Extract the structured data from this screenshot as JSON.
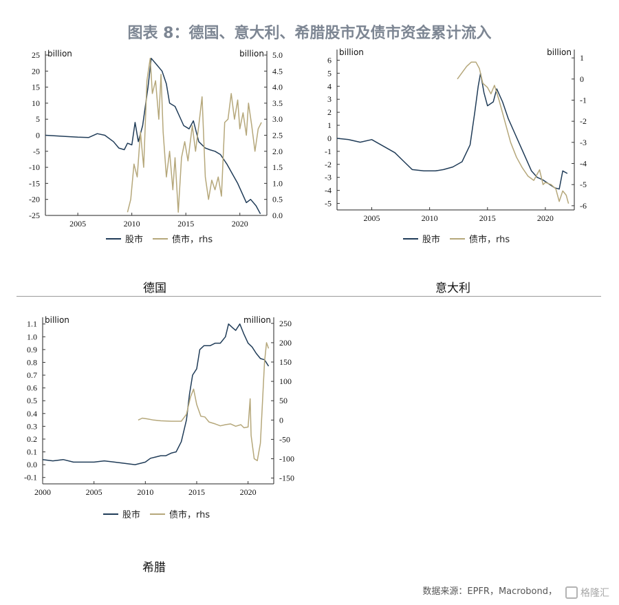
{
  "title": "图表 8：德国、意大利、希腊股市及债市资金累计流入",
  "source": "数据来源：EPFR，Macrobond，",
  "watermark": "格隆汇",
  "colors": {
    "equity": "#1f3b57",
    "bond": "#b5a77a"
  },
  "chart_data": [
    {
      "name": "德国",
      "type": "line",
      "left_unit": "billion",
      "right_unit": "billion",
      "left_ylim": [
        -25,
        25
      ],
      "left_ticks": [
        25,
        20,
        15,
        10,
        5,
        0,
        -5,
        -10,
        -15,
        -20,
        -25
      ],
      "right_ylim": [
        0,
        5
      ],
      "right_ticks": [
        "5.0",
        "4.5",
        "4.0",
        "3.5",
        "3.0",
        "2.5",
        "2.0",
        "1.5",
        "1.0",
        "0.5",
        "0.0"
      ],
      "xlim": [
        2002,
        2022.5
      ],
      "x_ticks": [
        2005,
        2010,
        2015,
        2020
      ],
      "legend": [
        "股市",
        "债市，rhs"
      ],
      "series": [
        {
          "name": "股市",
          "axis": "left",
          "points": [
            [
              2002.0,
              0
            ],
            [
              2004.0,
              -0.4
            ],
            [
              2005.0,
              -0.6
            ],
            [
              2006.0,
              -0.7
            ],
            [
              2006.8,
              0.5
            ],
            [
              2007.5,
              0
            ],
            [
              2008.3,
              -2
            ],
            [
              2008.8,
              -4
            ],
            [
              2009.3,
              -4.5
            ],
            [
              2009.6,
              -2.5
            ],
            [
              2010.0,
              -3
            ],
            [
              2010.3,
              4
            ],
            [
              2010.6,
              -2
            ],
            [
              2011.0,
              3
            ],
            [
              2011.5,
              15
            ],
            [
              2011.8,
              24
            ],
            [
              2012.3,
              22
            ],
            [
              2012.8,
              20
            ],
            [
              2013.2,
              16
            ],
            [
              2013.5,
              10
            ],
            [
              2014.0,
              9
            ],
            [
              2014.4,
              6
            ],
            [
              2014.8,
              3
            ],
            [
              2015.3,
              2
            ],
            [
              2015.7,
              4.5
            ],
            [
              2016.2,
              -2
            ],
            [
              2016.8,
              -4
            ],
            [
              2017.2,
              -4.5
            ],
            [
              2017.7,
              -5
            ],
            [
              2018.2,
              -6
            ],
            [
              2018.8,
              -9
            ],
            [
              2019.3,
              -12
            ],
            [
              2019.8,
              -15
            ],
            [
              2020.2,
              -18
            ],
            [
              2020.6,
              -21
            ],
            [
              2021.0,
              -20
            ],
            [
              2021.5,
              -22
            ],
            [
              2021.9,
              -24.5
            ]
          ]
        },
        {
          "name": "债市，rhs",
          "axis": "right",
          "points": [
            [
              2009.6,
              0.1
            ],
            [
              2009.9,
              0.5
            ],
            [
              2010.2,
              1.6
            ],
            [
              2010.5,
              1.2
            ],
            [
              2010.8,
              2.6
            ],
            [
              2011.1,
              1.5
            ],
            [
              2011.4,
              4.2
            ],
            [
              2011.7,
              4.9
            ],
            [
              2011.9,
              3.8
            ],
            [
              2012.2,
              4.2
            ],
            [
              2012.5,
              3.0
            ],
            [
              2012.7,
              4.4
            ],
            [
              2012.9,
              2.6
            ],
            [
              2013.2,
              1.2
            ],
            [
              2013.5,
              2.0
            ],
            [
              2013.8,
              0.8
            ],
            [
              2014.0,
              1.8
            ],
            [
              2014.3,
              0.1
            ],
            [
              2014.6,
              1.8
            ],
            [
              2014.9,
              2.3
            ],
            [
              2015.2,
              1.7
            ],
            [
              2015.6,
              2.8
            ],
            [
              2015.9,
              2.0
            ],
            [
              2016.2,
              2.8
            ],
            [
              2016.5,
              3.7
            ],
            [
              2016.8,
              1.2
            ],
            [
              2017.1,
              0.5
            ],
            [
              2017.4,
              1.1
            ],
            [
              2017.7,
              0.8
            ],
            [
              2018.0,
              1.2
            ],
            [
              2018.3,
              0.6
            ],
            [
              2018.6,
              2.9
            ],
            [
              2018.9,
              3.0
            ],
            [
              2019.2,
              3.8
            ],
            [
              2019.5,
              3.0
            ],
            [
              2019.8,
              3.6
            ],
            [
              2020.0,
              2.7
            ],
            [
              2020.3,
              3.2
            ],
            [
              2020.6,
              2.5
            ],
            [
              2020.8,
              3.5
            ],
            [
              2021.1,
              2.8
            ],
            [
              2021.4,
              2.0
            ],
            [
              2021.7,
              2.7
            ],
            [
              2022.0,
              2.9
            ]
          ]
        }
      ]
    },
    {
      "name": "意大利",
      "type": "line",
      "left_unit": "billion",
      "right_unit": "billion",
      "left_ylim": [
        -5.5,
        6.5
      ],
      "left_ticks": [
        6,
        5,
        4,
        3,
        2,
        1,
        0,
        -1,
        -2,
        -3,
        -4,
        -5
      ],
      "right_ylim": [
        -6.2,
        1.2
      ],
      "right_ticks": [
        1,
        0,
        -1,
        -2,
        -3,
        -4,
        -5,
        -6
      ],
      "xlim": [
        2002,
        2022.5
      ],
      "x_ticks": [
        2005,
        2010,
        2015,
        2020
      ],
      "legend": [
        "股市",
        "债市，rhs"
      ],
      "series": [
        {
          "name": "股市",
          "axis": "left",
          "points": [
            [
              2002.0,
              0
            ],
            [
              2003.0,
              -0.1
            ],
            [
              2004.0,
              -0.3
            ],
            [
              2005.0,
              -0.1
            ],
            [
              2006.0,
              -0.6
            ],
            [
              2007.0,
              -1.1
            ],
            [
              2007.8,
              -1.8
            ],
            [
              2008.5,
              -2.4
            ],
            [
              2009.5,
              -2.5
            ],
            [
              2010.5,
              -2.5
            ],
            [
              2011.2,
              -2.4
            ],
            [
              2012.0,
              -2.2
            ],
            [
              2012.8,
              -1.8
            ],
            [
              2013.5,
              -0.5
            ],
            [
              2013.9,
              2
            ],
            [
              2014.2,
              4
            ],
            [
              2014.4,
              5
            ],
            [
              2014.7,
              3.5
            ],
            [
              2015.0,
              2.5
            ],
            [
              2015.5,
              2.8
            ],
            [
              2015.8,
              3.8
            ],
            [
              2016.3,
              2.8
            ],
            [
              2016.8,
              1.5
            ],
            [
              2017.3,
              0.5
            ],
            [
              2017.8,
              -0.5
            ],
            [
              2018.3,
              -1.5
            ],
            [
              2018.8,
              -2.5
            ],
            [
              2019.3,
              -3.0
            ],
            [
              2019.8,
              -3.2
            ],
            [
              2020.3,
              -3.5
            ],
            [
              2020.8,
              -3.8
            ],
            [
              2021.2,
              -3.9
            ],
            [
              2021.5,
              -2.5
            ],
            [
              2021.9,
              -2.7
            ]
          ]
        },
        {
          "name": "债市，rhs",
          "axis": "right",
          "points": [
            [
              2012.4,
              0
            ],
            [
              2012.8,
              0.3
            ],
            [
              2013.2,
              0.6
            ],
            [
              2013.6,
              0.8
            ],
            [
              2014.0,
              0.8
            ],
            [
              2014.3,
              0.5
            ],
            [
              2014.6,
              -0.2
            ],
            [
              2015.0,
              -0.4
            ],
            [
              2015.3,
              -0.7
            ],
            [
              2015.6,
              -0.3
            ],
            [
              2016.0,
              -1.0
            ],
            [
              2016.5,
              -2.0
            ],
            [
              2017.0,
              -3.0
            ],
            [
              2017.5,
              -3.7
            ],
            [
              2018.0,
              -4.2
            ],
            [
              2018.5,
              -4.6
            ],
            [
              2019.0,
              -4.8
            ],
            [
              2019.5,
              -4.3
            ],
            [
              2019.8,
              -5.0
            ],
            [
              2020.0,
              -4.9
            ],
            [
              2020.5,
              -5.0
            ],
            [
              2020.9,
              -5.2
            ],
            [
              2021.2,
              -5.8
            ],
            [
              2021.5,
              -5.3
            ],
            [
              2021.8,
              -5.5
            ],
            [
              2022.0,
              -5.9
            ]
          ]
        }
      ]
    },
    {
      "name": "希腊",
      "type": "line",
      "left_unit": "billion",
      "right_unit": "million",
      "left_ylim": [
        -0.15,
        1.12
      ],
      "left_ticks": [
        "1.1",
        "1.0",
        "0.9",
        "0.8",
        "0.7",
        "0.6",
        "0.5",
        "0.4",
        "0.3",
        "0.2",
        "0.1",
        "0.0",
        "-0.1"
      ],
      "right_ylim": [
        -165,
        255
      ],
      "right_ticks": [
        250,
        200,
        150,
        100,
        50,
        0,
        -50,
        -100,
        -150
      ],
      "xlim": [
        2000,
        2022.5
      ],
      "x_ticks": [
        2000,
        2005,
        2010,
        2015,
        2020
      ],
      "legend": [
        "股市",
        "债市，rhs"
      ],
      "series": [
        {
          "name": "股市",
          "axis": "left",
          "points": [
            [
              2000.0,
              0.04
            ],
            [
              2001.0,
              0.03
            ],
            [
              2002.0,
              0.04
            ],
            [
              2003.0,
              0.02
            ],
            [
              2004.0,
              0.02
            ],
            [
              2005.0,
              0.02
            ],
            [
              2006.0,
              0.03
            ],
            [
              2007.0,
              0.02
            ],
            [
              2008.0,
              0.01
            ],
            [
              2009.0,
              0.0
            ],
            [
              2010.0,
              0.02
            ],
            [
              2010.5,
              0.05
            ],
            [
              2011.0,
              0.06
            ],
            [
              2011.5,
              0.07
            ],
            [
              2012.0,
              0.07
            ],
            [
              2012.5,
              0.09
            ],
            [
              2013.0,
              0.1
            ],
            [
              2013.5,
              0.18
            ],
            [
              2014.0,
              0.35
            ],
            [
              2014.3,
              0.55
            ],
            [
              2014.6,
              0.7
            ],
            [
              2015.0,
              0.75
            ],
            [
              2015.3,
              0.9
            ],
            [
              2015.7,
              0.93
            ],
            [
              2016.3,
              0.93
            ],
            [
              2016.8,
              0.95
            ],
            [
              2017.3,
              0.95
            ],
            [
              2017.8,
              1.0
            ],
            [
              2018.1,
              1.1
            ],
            [
              2018.5,
              1.07
            ],
            [
              2018.8,
              1.05
            ],
            [
              2019.2,
              1.1
            ],
            [
              2019.6,
              1.02
            ],
            [
              2020.0,
              0.95
            ],
            [
              2020.4,
              0.92
            ],
            [
              2020.8,
              0.87
            ],
            [
              2021.2,
              0.83
            ],
            [
              2021.6,
              0.82
            ],
            [
              2022.0,
              0.77
            ]
          ]
        },
        {
          "name": "债市，rhs",
          "axis": "right",
          "points": [
            [
              2009.3,
              0
            ],
            [
              2009.7,
              5
            ],
            [
              2010.2,
              3
            ],
            [
              2010.8,
              0
            ],
            [
              2011.5,
              -2
            ],
            [
              2012.5,
              -3
            ],
            [
              2013.5,
              -3
            ],
            [
              2014.0,
              15
            ],
            [
              2014.4,
              60
            ],
            [
              2014.7,
              80
            ],
            [
              2015.0,
              40
            ],
            [
              2015.4,
              10
            ],
            [
              2015.8,
              8
            ],
            [
              2016.2,
              -5
            ],
            [
              2016.8,
              -10
            ],
            [
              2017.3,
              -15
            ],
            [
              2017.8,
              -12
            ],
            [
              2018.3,
              -10
            ],
            [
              2018.8,
              -16
            ],
            [
              2019.3,
              -12
            ],
            [
              2019.6,
              -20
            ],
            [
              2020.0,
              -18
            ],
            [
              2020.2,
              55
            ],
            [
              2020.3,
              -40
            ],
            [
              2020.6,
              -100
            ],
            [
              2020.9,
              -105
            ],
            [
              2021.2,
              -60
            ],
            [
              2021.6,
              150
            ],
            [
              2021.8,
              200
            ],
            [
              2022.0,
              185
            ]
          ]
        }
      ]
    }
  ]
}
